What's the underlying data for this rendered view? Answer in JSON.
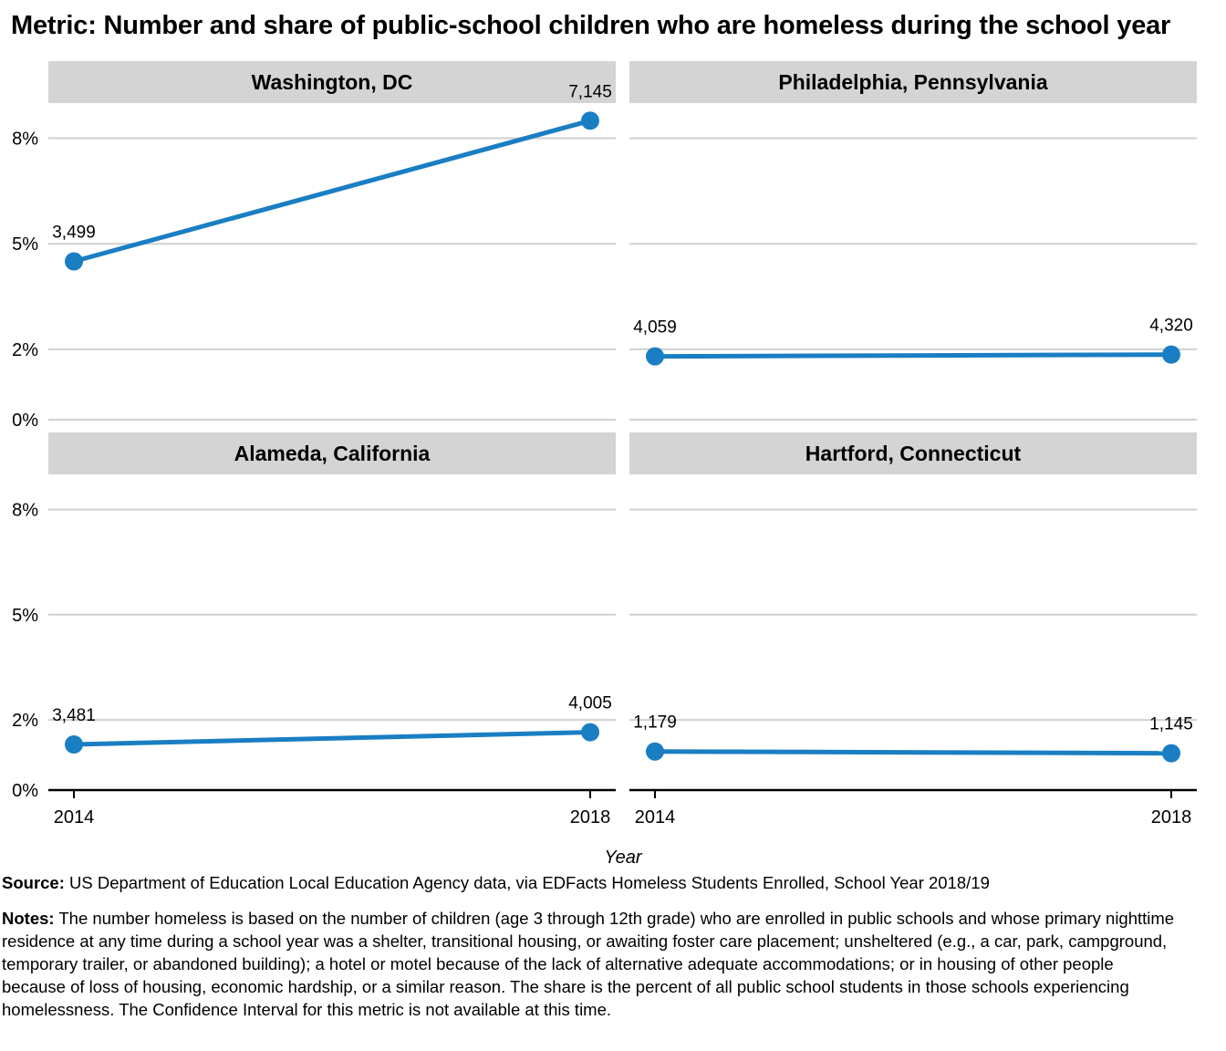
{
  "title": "Metric: Number and share of public-school children who are homeless during the school year",
  "chart_data": {
    "type": "line",
    "facet_layout": "2x2",
    "shared_y_axis": true,
    "xlabel": "Year",
    "ylabel": "",
    "x": [
      2014,
      2018
    ],
    "x_tick_labels": [
      "2014",
      "2018"
    ],
    "ylim": [
      0,
      9
    ],
    "y_ticks": [
      0,
      2,
      5,
      8
    ],
    "y_tick_labels": [
      "0%",
      "2%",
      "5%",
      "8%"
    ],
    "grid": true,
    "legend": "none",
    "series_color": "#1a7ec3",
    "strip_color": "#d4d4d4",
    "panels": [
      {
        "name": "Washington, DC",
        "values": [
          4.5,
          8.5
        ],
        "labels": [
          "3,499",
          "7,145"
        ]
      },
      {
        "name": "Philadelphia, Pennsylvania",
        "values": [
          1.8,
          1.85
        ],
        "labels": [
          "4,059",
          "4,320"
        ]
      },
      {
        "name": "Alameda, California",
        "values": [
          1.3,
          1.65
        ],
        "labels": [
          "3,481",
          "4,005"
        ]
      },
      {
        "name": "Hartford, Connecticut",
        "values": [
          1.1,
          1.05
        ],
        "labels": [
          "1,179",
          "1,145"
        ]
      }
    ]
  },
  "source": {
    "label": "Source:",
    "text": " US Department of Education Local Education Agency data, via EDFacts Homeless Students Enrolled, School Year 2018/19"
  },
  "notes": {
    "label": "Notes:",
    "text": " The number homeless is based on the number of children (age 3 through 12th grade) who are enrolled in public schools and whose primary nighttime residence at any time during a school year was a shelter, transitional housing, or awaiting foster care placement; unsheltered (e.g., a car, park, campground, temporary trailer, or abandoned building); a hotel or motel because of the lack of alternative adequate accommodations; or in housing of other people because of loss of housing, economic hardship, or a similar reason. The share is the percent of all public school students in those schools experiencing homelessness. The Confidence Interval for this metric is not available at this time."
  }
}
